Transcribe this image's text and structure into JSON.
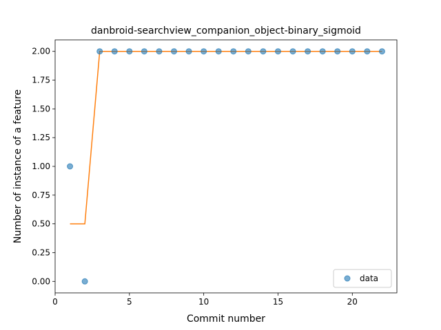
{
  "chart_data": {
    "type": "scatter",
    "title": "danbroid-searchview_companion_object-binary_sigmoid",
    "xlabel": "Commit number",
    "ylabel": "Number of instance of a feature",
    "xlim": [
      0,
      23
    ],
    "ylim": [
      -0.1,
      2.1
    ],
    "xticks": [
      0,
      5,
      10,
      15,
      20
    ],
    "xtick_labels": [
      "0",
      "5",
      "10",
      "15",
      "20"
    ],
    "yticks": [
      0,
      0.25,
      0.5,
      0.75,
      1.0,
      1.25,
      1.5,
      1.75,
      2.0
    ],
    "ytick_labels": [
      "0.00",
      "0.25",
      "0.50",
      "0.75",
      "1.00",
      "1.25",
      "1.50",
      "1.75",
      "2.00"
    ],
    "grid": false,
    "legend_position": "lower-right",
    "series": [
      {
        "name": "data",
        "kind": "scatter",
        "color": "#1f77b4",
        "x": [
          1,
          2,
          3,
          4,
          5,
          6,
          7,
          8,
          9,
          10,
          11,
          12,
          13,
          14,
          15,
          16,
          17,
          18,
          19,
          20,
          21,
          22
        ],
        "y": [
          1,
          0,
          2,
          2,
          2,
          2,
          2,
          2,
          2,
          2,
          2,
          2,
          2,
          2,
          2,
          2,
          2,
          2,
          2,
          2,
          2,
          2
        ]
      },
      {
        "kind": "line",
        "color": "#ff7f0e",
        "x": [
          1,
          2,
          3,
          4,
          5,
          6,
          7,
          8,
          9,
          10,
          11,
          12,
          13,
          14,
          15,
          16,
          17,
          18,
          19,
          20,
          21,
          22
        ],
        "y": [
          0.5,
          0.5,
          2,
          2,
          2,
          2,
          2,
          2,
          2,
          2,
          2,
          2,
          2,
          2,
          2,
          2,
          2,
          2,
          2,
          2,
          2,
          2
        ]
      }
    ]
  }
}
